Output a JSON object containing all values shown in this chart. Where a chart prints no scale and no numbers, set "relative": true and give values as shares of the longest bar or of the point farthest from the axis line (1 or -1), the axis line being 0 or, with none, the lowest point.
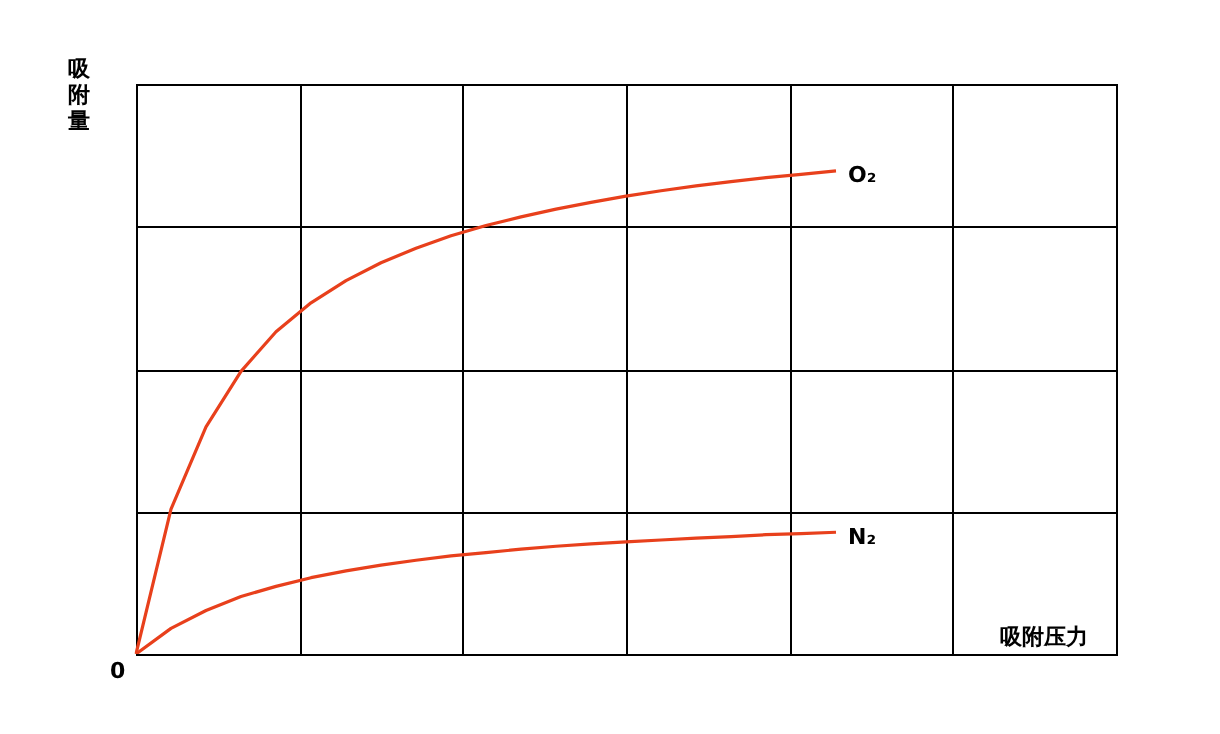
{
  "chart_data": {
    "type": "line",
    "relative": true,
    "grid": true,
    "legend": false,
    "marker": "none",
    "line_style": "solid",
    "xlabel": "吸附压力",
    "ylabel": "吸附量",
    "annotations": [
      "0"
    ],
    "categories": [
      null,
      null,
      null,
      null,
      null,
      null,
      null,
      null,
      null,
      null,
      null,
      null,
      null,
      null,
      null,
      null,
      null,
      null,
      null,
      null,
      null,
      null,
      null,
      null,
      null,
      null,
      null,
      null,
      null
    ],
    "series": [
      {
        "name": "O₂",
        "color": "#e8401c",
        "values": [
          0,
          0.3,
          0.47,
          0.585,
          0.667,
          0.727,
          0.773,
          0.81,
          0.84,
          0.866,
          0.887,
          0.905,
          0.921,
          0.935,
          0.948,
          0.959,
          0.969,
          0.978,
          0.986,
          0.993,
          1,
          null,
          null,
          null,
          null,
          null,
          null,
          null,
          null
        ]
      },
      {
        "name": "N₂",
        "color": "#e8401c",
        "values": [
          0,
          0.053,
          0.09,
          0.119,
          0.14,
          0.158,
          0.172,
          0.184,
          0.194,
          0.203,
          0.21,
          0.217,
          0.223,
          0.228,
          0.232,
          0.236,
          0.24,
          0.243,
          0.247,
          0.249,
          0.252,
          null,
          null,
          null,
          null,
          null,
          null,
          null,
          null
        ]
      }
    ]
  }
}
